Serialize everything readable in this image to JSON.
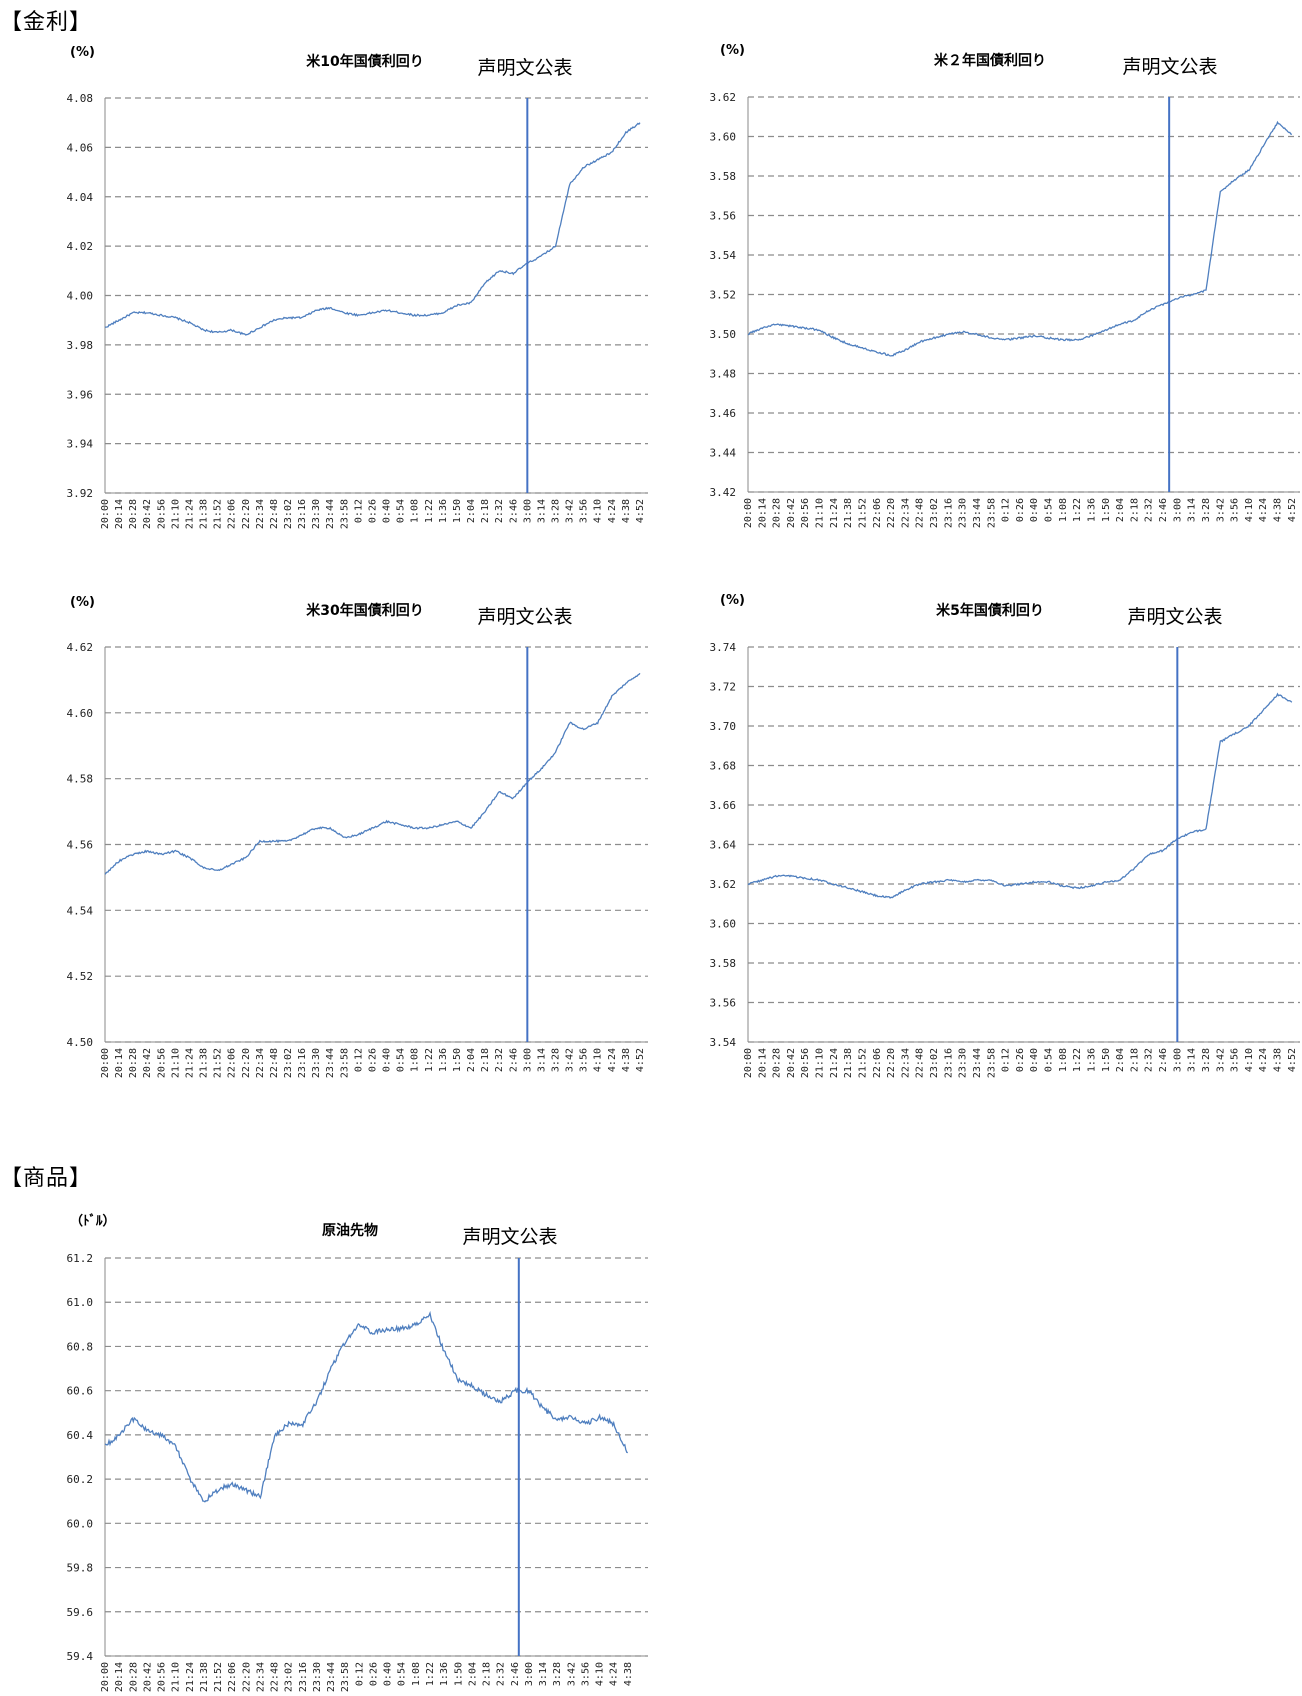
{
  "sections": {
    "rates": "【金利】",
    "commodities": "【商品】"
  },
  "colors": {
    "series": "#4f7fbf",
    "event_line": "#4472c4",
    "grid": "#8c8c8c",
    "axis": "#888888"
  },
  "time_ticks": [
    "20:00",
    "20:14",
    "20:28",
    "20:42",
    "20:56",
    "21:10",
    "21:24",
    "21:38",
    "21:52",
    "22:06",
    "22:20",
    "22:34",
    "22:48",
    "23:02",
    "23:16",
    "23:30",
    "23:44",
    "23:58",
    "0:12",
    "0:26",
    "0:40",
    "0:54",
    "1:08",
    "1:22",
    "1:36",
    "1:50",
    "2:04",
    "2:18",
    "2:32",
    "2:46",
    "3:00",
    "3:14",
    "3:28",
    "3:42",
    "3:56",
    "4:10",
    "4:24",
    "4:38",
    "4:52"
  ],
  "charts": [
    {
      "id": "us10y",
      "unit": "(%)",
      "title": "米10年国債利回り",
      "annotation": "声明文公表",
      "chart_data": {
        "type": "line",
        "x": [
          "20:00",
          "20:14",
          "20:28",
          "20:42",
          "20:56",
          "21:10",
          "21:24",
          "21:38",
          "21:52",
          "22:06",
          "22:20",
          "22:34",
          "22:48",
          "23:02",
          "23:16",
          "23:30",
          "23:44",
          "23:58",
          "0:12",
          "0:26",
          "0:40",
          "0:54",
          "1:08",
          "1:22",
          "1:36",
          "1:50",
          "2:04",
          "2:18",
          "2:32",
          "2:46",
          "3:00",
          "3:14",
          "3:28",
          "3:42",
          "3:56",
          "4:10",
          "4:24",
          "4:38",
          "4:52"
        ],
        "series": [
          {
            "values": [
              3.987,
              3.99,
              3.993,
              3.993,
              3.992,
              3.991,
              3.989,
              3.986,
              3.985,
              3.986,
              3.984,
              3.987,
              3.99,
              3.991,
              3.991,
              3.994,
              3.995,
              3.993,
              3.992,
              3.993,
              3.994,
              3.993,
              3.992,
              3.992,
              3.993,
              3.996,
              3.997,
              4.005,
              4.01,
              4.009,
              4.013,
              4.016,
              4.02,
              4.045,
              4.052,
              4.055,
              4.058,
              4.066,
              4.07
            ]
          }
        ],
        "yticks": [
          "4.08",
          "4.06",
          "4.04",
          "4.02",
          "4.00",
          "3.98",
          "3.96",
          "3.94",
          "3.92"
        ],
        "ylim": [
          3.92,
          4.08
        ],
        "event_x": "3:00",
        "grid": true
      }
    },
    {
      "id": "us2y",
      "unit": "(%)",
      "title": "米２年国債利回り",
      "annotation": "声明文公表",
      "chart_data": {
        "type": "line",
        "x": [
          "20:00",
          "20:14",
          "20:28",
          "20:42",
          "20:56",
          "21:10",
          "21:24",
          "21:38",
          "21:52",
          "22:06",
          "22:20",
          "22:34",
          "22:48",
          "23:02",
          "23:16",
          "23:30",
          "23:44",
          "23:58",
          "0:12",
          "0:26",
          "0:40",
          "0:54",
          "1:08",
          "1:22",
          "1:36",
          "1:50",
          "2:04",
          "2:18",
          "2:32",
          "2:46",
          "3:00",
          "3:14",
          "3:28",
          "3:42",
          "3:56",
          "4:10",
          "4:24",
          "4:38",
          "4:52"
        ],
        "series": [
          {
            "values": [
              3.5,
              3.503,
              3.505,
              3.504,
              3.503,
              3.502,
              3.498,
              3.495,
              3.493,
              3.491,
              3.489,
              3.492,
              3.496,
              3.498,
              3.5,
              3.501,
              3.5,
              3.498,
              3.497,
              3.498,
              3.499,
              3.498,
              3.497,
              3.497,
              3.499,
              3.502,
              3.505,
              3.507,
              3.512,
              3.515,
              3.518,
              3.52,
              3.522,
              3.572,
              3.578,
              3.583,
              3.595,
              3.607,
              3.601
            ]
          }
        ],
        "yticks": [
          "3.62",
          "3.60",
          "3.58",
          "3.56",
          "3.54",
          "3.52",
          "3.50",
          "3.48",
          "3.46",
          "3.44",
          "3.42"
        ],
        "ylim": [
          3.42,
          3.62
        ],
        "event_x": "2:52",
        "grid": true
      }
    },
    {
      "id": "us30y",
      "unit": "(%)",
      "title": "米30年国債利回り",
      "annotation": "声明文公表",
      "chart_data": {
        "type": "line",
        "x": [
          "20:00",
          "20:14",
          "20:28",
          "20:42",
          "20:56",
          "21:10",
          "21:24",
          "21:38",
          "21:52",
          "22:06",
          "22:20",
          "22:34",
          "22:48",
          "23:02",
          "23:16",
          "23:30",
          "23:44",
          "23:58",
          "0:12",
          "0:26",
          "0:40",
          "0:54",
          "1:08",
          "1:22",
          "1:36",
          "1:50",
          "2:04",
          "2:18",
          "2:32",
          "2:46",
          "3:00",
          "3:14",
          "3:28",
          "3:42",
          "3:56",
          "4:10",
          "4:24",
          "4:38",
          "4:52"
        ],
        "series": [
          {
            "values": [
              4.551,
              4.555,
              4.557,
              4.558,
              4.557,
              4.558,
              4.556,
              4.553,
              4.552,
              4.554,
              4.556,
              4.561,
              4.561,
              4.561,
              4.563,
              4.565,
              4.565,
              4.562,
              4.563,
              4.565,
              4.567,
              4.566,
              4.565,
              4.565,
              4.566,
              4.567,
              4.565,
              4.57,
              4.576,
              4.574,
              4.579,
              4.583,
              4.588,
              4.597,
              4.595,
              4.597,
              4.605,
              4.609,
              4.612
            ]
          }
        ],
        "yticks": [
          "4.62",
          "4.60",
          "4.58",
          "4.56",
          "4.54",
          "4.52",
          "4.50"
        ],
        "ylim": [
          4.5,
          4.62
        ],
        "event_x": "3:00",
        "grid": true
      }
    },
    {
      "id": "us5y",
      "unit": "(%)",
      "title": "米5年国債利回り",
      "annotation": "声明文公表",
      "chart_data": {
        "type": "line",
        "x": [
          "20:00",
          "20:14",
          "20:28",
          "20:42",
          "20:56",
          "21:10",
          "21:24",
          "21:38",
          "21:52",
          "22:06",
          "22:20",
          "22:34",
          "22:48",
          "23:02",
          "23:16",
          "23:30",
          "23:44",
          "23:58",
          "0:12",
          "0:26",
          "0:40",
          "0:54",
          "1:08",
          "1:22",
          "1:36",
          "1:50",
          "2:04",
          "2:18",
          "2:32",
          "2:46",
          "3:00",
          "3:14",
          "3:28",
          "3:42",
          "3:56",
          "4:10",
          "4:24",
          "4:38",
          "4:52"
        ],
        "series": [
          {
            "values": [
              3.62,
              3.622,
              3.624,
              3.624,
              3.623,
              3.622,
              3.62,
              3.618,
              3.616,
              3.614,
              3.613,
              3.617,
              3.62,
              3.621,
              3.622,
              3.621,
              3.622,
              3.622,
              3.619,
              3.62,
              3.621,
              3.621,
              3.619,
              3.618,
              3.619,
              3.621,
              3.622,
              3.628,
              3.635,
              3.637,
              3.643,
              3.646,
              3.648,
              3.692,
              3.696,
              3.7,
              3.708,
              3.716,
              3.712
            ]
          }
        ],
        "yticks": [
          "3.74",
          "3.72",
          "3.70",
          "3.68",
          "3.66",
          "3.64",
          "3.62",
          "3.60",
          "3.58",
          "3.56",
          "3.54"
        ],
        "ylim": [
          3.54,
          3.74
        ],
        "event_x": "3:00",
        "grid": true
      }
    },
    {
      "id": "crude",
      "unit": "（ﾄﾞﾙ）",
      "title": "原油先物",
      "annotation": "声明文公表",
      "chart_data": {
        "type": "line",
        "x": [
          "20:00",
          "20:14",
          "20:28",
          "20:42",
          "20:56",
          "21:10",
          "21:24",
          "21:38",
          "21:52",
          "22:06",
          "22:20",
          "22:34",
          "22:48",
          "23:02",
          "23:16",
          "23:30",
          "23:44",
          "23:58",
          "0:12",
          "0:26",
          "0:40",
          "0:54",
          "1:08",
          "1:22",
          "1:36",
          "1:50",
          "2:04",
          "2:18",
          "2:32",
          "2:46",
          "3:00",
          "3:14",
          "3:28",
          "3:42",
          "3:56",
          "4:10",
          "4:24",
          "4:38"
        ],
        "series": [
          {
            "values": [
              60.35,
              60.4,
              60.47,
              60.42,
              60.4,
              60.35,
              60.2,
              60.1,
              60.15,
              60.18,
              60.15,
              60.12,
              60.4,
              60.45,
              60.45,
              60.55,
              60.7,
              60.82,
              60.9,
              60.86,
              60.88,
              60.88,
              60.9,
              60.94,
              60.78,
              60.65,
              60.62,
              60.58,
              60.55,
              60.6,
              60.6,
              60.52,
              60.47,
              60.48,
              60.45,
              60.48,
              60.45,
              60.32
            ]
          }
        ],
        "yticks": [
          "61.2",
          "61.0",
          "60.8",
          "60.6",
          "60.4",
          "60.2",
          "60.0",
          "59.8",
          "59.6",
          "59.4"
        ],
        "ylim": [
          59.4,
          61.2
        ],
        "event_x": "2:50",
        "grid": true
      }
    }
  ]
}
